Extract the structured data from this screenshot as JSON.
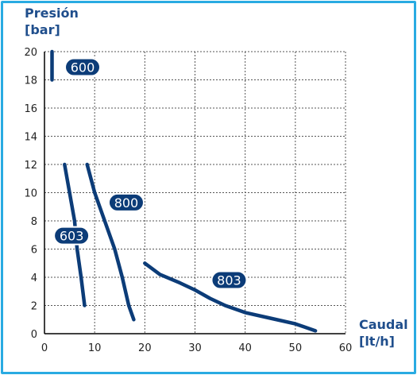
{
  "chart_data": {
    "type": "line",
    "ylabel": [
      "Presión",
      "[bar]"
    ],
    "xlabel": [
      "Caudal",
      "[lt/h]"
    ],
    "xlim": [
      0,
      60
    ],
    "ylim": [
      0,
      20
    ],
    "xticks": [
      0,
      10,
      20,
      30,
      40,
      50,
      60
    ],
    "yticks": [
      0,
      2,
      4,
      6,
      8,
      10,
      12,
      14,
      16,
      18,
      20
    ],
    "grid": true,
    "colors": {
      "series": "#0c3c78",
      "axis_label": "#1f4e8c",
      "frame": "#29abe2",
      "label_text": "#ffffff"
    },
    "series": [
      {
        "name": "600",
        "points": [
          [
            1.5,
            20
          ],
          [
            1.5,
            18
          ]
        ]
      },
      {
        "name": "603",
        "points": [
          [
            4,
            12
          ],
          [
            5,
            10
          ],
          [
            6,
            8
          ],
          [
            6.5,
            6
          ],
          [
            7.3,
            4
          ],
          [
            8,
            2
          ]
        ]
      },
      {
        "name": "800",
        "points": [
          [
            8.5,
            12
          ],
          [
            10,
            10
          ],
          [
            12,
            8
          ],
          [
            14,
            6
          ],
          [
            15.5,
            4
          ],
          [
            16.8,
            2
          ],
          [
            17.8,
            1
          ]
        ]
      },
      {
        "name": "803",
        "points": [
          [
            20,
            5
          ],
          [
            23,
            4.2
          ],
          [
            27,
            3.6
          ],
          [
            30,
            3.1
          ],
          [
            33,
            2.5
          ],
          [
            36,
            2
          ],
          [
            40,
            1.5
          ],
          [
            45,
            1.1
          ],
          [
            50,
            0.7
          ],
          [
            54,
            0.2
          ]
        ]
      }
    ],
    "labels": [
      {
        "text": "600",
        "x": 7.6,
        "y": 18.9
      },
      {
        "text": "800",
        "x": 16.3,
        "y": 9.3
      },
      {
        "text": "603",
        "x": 5.4,
        "y": 6.95
      },
      {
        "text": "803",
        "x": 36.8,
        "y": 3.8
      }
    ]
  }
}
